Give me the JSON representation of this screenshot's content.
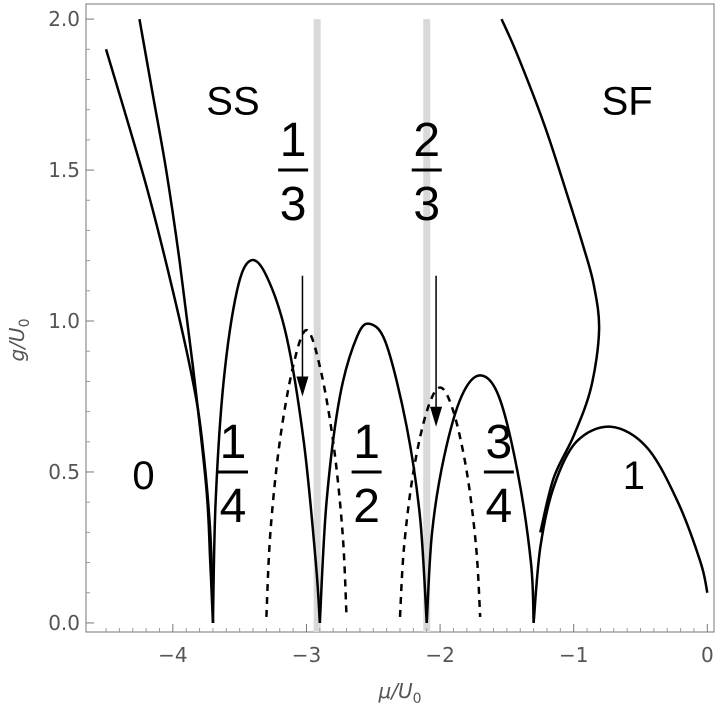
{
  "chart_data": {
    "type": "line",
    "xlabel": "μ/U",
    "xlabel_sub": "0",
    "ylabel": "g/U",
    "ylabel_sub": "0",
    "xlim": [
      -4.65,
      0.05
    ],
    "ylim": [
      -0.03,
      2.05
    ],
    "x_ticks": [
      -4,
      -3,
      -2,
      -1,
      0
    ],
    "x_tick_labels": [
      "−4",
      "−3",
      "−2",
      "−1",
      "0"
    ],
    "y_ticks": [
      0,
      0.5,
      1.0,
      1.5,
      2.0
    ],
    "y_tick_labels": [
      "0.0",
      "0.5",
      "1.0",
      "1.5",
      "2.0"
    ],
    "region_labels": [
      {
        "text": "SS",
        "x": -3.55,
        "y": 1.73
      },
      {
        "text": "SF",
        "x": -0.6,
        "y": 1.73
      },
      {
        "text": "0",
        "x": -4.22,
        "y": 0.49
      },
      {
        "text": "1",
        "x": -0.55,
        "y": 0.49
      }
    ],
    "fraction_labels": [
      {
        "num": "1",
        "den": "4",
        "x": -3.55,
        "y": 0.5
      },
      {
        "num": "1",
        "den": "2",
        "x": -2.55,
        "y": 0.5
      },
      {
        "num": "3",
        "den": "4",
        "x": -1.56,
        "y": 0.5
      },
      {
        "num": "1",
        "den": "3",
        "x": -3.1,
        "y": 1.5
      },
      {
        "num": "2",
        "den": "3",
        "x": -2.1,
        "y": 1.5
      }
    ],
    "vertical_lines": [
      {
        "x": -2.92,
        "color": "#d9d9d9"
      },
      {
        "x": -2.1,
        "color": "#d9d9d9"
      }
    ],
    "arrows": [
      {
        "x1": -3.03,
        "y1": 1.15,
        "x2": -3.03,
        "y2": 0.75
      },
      {
        "x1": -2.03,
        "y1": 1.15,
        "x2": -2.03,
        "y2": 0.65
      }
    ],
    "series": [
      {
        "style": "solid",
        "points": [
          [
            -3.7,
            0
          ],
          [
            -3.72,
            0.3
          ],
          [
            -3.78,
            0.6
          ],
          [
            -3.85,
            0.8
          ],
          [
            -4.0,
            1.1
          ],
          [
            -4.2,
            1.45
          ],
          [
            -4.5,
            1.9
          ]
        ]
      },
      {
        "style": "solid",
        "points": [
          [
            -3.7,
            0
          ],
          [
            -3.72,
            0.2
          ],
          [
            -3.75,
            0.45
          ],
          [
            -3.85,
            0.85
          ],
          [
            -3.95,
            1.2
          ],
          [
            -4.05,
            1.5
          ],
          [
            -4.15,
            1.75
          ],
          [
            -4.25,
            2.0
          ]
        ]
      },
      {
        "style": "solid",
        "points": [
          [
            -3.7,
            0
          ],
          [
            -3.68,
            0.4
          ],
          [
            -3.62,
            0.8
          ],
          [
            -3.52,
            1.1
          ],
          [
            -3.42,
            1.2
          ],
          [
            -3.3,
            1.15
          ],
          [
            -3.15,
            0.95
          ],
          [
            -3.02,
            0.6
          ],
          [
            -2.93,
            0.2
          ],
          [
            -2.9,
            0
          ]
        ]
      },
      {
        "style": "solid",
        "points": [
          [
            -2.9,
            0
          ],
          [
            -2.85,
            0.4
          ],
          [
            -2.75,
            0.75
          ],
          [
            -2.62,
            0.95
          ],
          [
            -2.52,
            0.99
          ],
          [
            -2.4,
            0.92
          ],
          [
            -2.25,
            0.65
          ],
          [
            -2.15,
            0.35
          ],
          [
            -2.1,
            0
          ]
        ]
      },
      {
        "style": "solid",
        "points": [
          [
            -2.1,
            0
          ],
          [
            -2.06,
            0.3
          ],
          [
            -1.97,
            0.55
          ],
          [
            -1.84,
            0.75
          ],
          [
            -1.7,
            0.82
          ],
          [
            -1.56,
            0.75
          ],
          [
            -1.42,
            0.5
          ],
          [
            -1.32,
            0.2
          ],
          [
            -1.3,
            0
          ]
        ]
      },
      {
        "style": "solid",
        "points": [
          [
            -1.3,
            0
          ],
          [
            -1.25,
            0.25
          ],
          [
            -1.15,
            0.45
          ],
          [
            -0.98,
            0.6
          ],
          [
            -0.72,
            0.65
          ],
          [
            -0.45,
            0.58
          ],
          [
            -0.22,
            0.4
          ],
          [
            -0.05,
            0.2
          ],
          [
            0,
            0.1
          ]
        ]
      },
      {
        "style": "solid",
        "points": [
          [
            -1.25,
            0.3
          ],
          [
            -1.15,
            0.48
          ],
          [
            -1.0,
            0.62
          ],
          [
            -0.87,
            0.78
          ],
          [
            -0.81,
            0.97
          ],
          [
            -0.85,
            1.12
          ],
          [
            -0.93,
            1.25
          ],
          [
            -1.05,
            1.42
          ],
          [
            -1.22,
            1.65
          ],
          [
            -1.42,
            1.88
          ],
          [
            -1.54,
            2.0
          ]
        ]
      },
      {
        "style": "dashed",
        "points": [
          [
            -3.3,
            0.02
          ],
          [
            -3.27,
            0.3
          ],
          [
            -3.2,
            0.6
          ],
          [
            -3.1,
            0.85
          ],
          [
            -3.0,
            0.97
          ],
          [
            -2.9,
            0.85
          ],
          [
            -2.8,
            0.6
          ],
          [
            -2.73,
            0.3
          ],
          [
            -2.7,
            0.02
          ]
        ]
      },
      {
        "style": "dashed",
        "points": [
          [
            -2.3,
            0.02
          ],
          [
            -2.27,
            0.25
          ],
          [
            -2.2,
            0.5
          ],
          [
            -2.1,
            0.7
          ],
          [
            -2.0,
            0.78
          ],
          [
            -1.9,
            0.7
          ],
          [
            -1.8,
            0.5
          ],
          [
            -1.73,
            0.25
          ],
          [
            -1.7,
            0.02
          ]
        ]
      }
    ]
  }
}
